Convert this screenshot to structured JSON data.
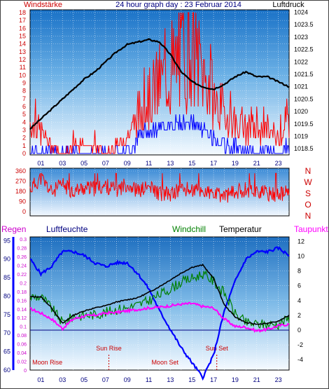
{
  "header": {
    "left_title": "Windstärke",
    "center_title": "24 hour graph day : 23 Februar 2014",
    "right_title": "Luftdruck"
  },
  "hour_labels": [
    "01",
    "03",
    "05",
    "07",
    "09",
    "11",
    "13",
    "15",
    "17",
    "19",
    "21",
    "23"
  ],
  "colors": {
    "wind": "#ff0000",
    "gust_low": "#0000ff",
    "pressure": "#000000",
    "humidity": "#0000ff",
    "temperature": "#000000",
    "windchill": "#008000",
    "dewpoint": "#ff00ff",
    "zero_line": "#000080",
    "top_left_axis_text": "#cc0000",
    "right_axis_text": "#000000"
  },
  "chart_data": [
    {
      "type": "line",
      "name": "wind_pressure",
      "left_axis": {
        "label": "Windstärke",
        "ticks": [
          0,
          1,
          2,
          3,
          4,
          5,
          6,
          7,
          8,
          9,
          10,
          11,
          12,
          13,
          14,
          15,
          16,
          17,
          18
        ]
      },
      "right_axis": {
        "label": "Luftdruck",
        "ticks": [
          1018.5,
          1019,
          1019.5,
          1020,
          1020.5,
          1021,
          1021.5,
          1022,
          1022.5,
          1023,
          1023.5,
          1024
        ]
      },
      "x_hours": [
        0,
        1,
        2,
        3,
        4,
        5,
        6,
        7,
        8,
        9,
        10,
        11,
        12,
        13,
        14,
        15,
        16,
        17,
        18,
        19,
        20,
        21,
        22,
        23,
        24
      ],
      "pressure": [
        1019.3,
        1019.7,
        1020.1,
        1020.5,
        1020.9,
        1021.3,
        1021.6,
        1022.0,
        1022.4,
        1022.7,
        1022.8,
        1022.9,
        1022.8,
        1022.3,
        1021.6,
        1021.2,
        1021.0,
        1020.9,
        1021.1,
        1021.4,
        1021.6,
        1021.4,
        1021.4,
        1021.2,
        1021.0
      ],
      "wind": [
        4,
        3,
        1,
        0,
        1,
        1,
        1,
        0,
        1,
        2,
        5,
        7,
        9,
        10,
        12,
        14,
        10,
        7,
        5,
        4,
        3,
        3,
        3,
        2,
        4
      ],
      "wind_low": [
        0,
        0,
        0,
        0,
        0,
        0,
        0,
        0,
        0,
        0,
        2,
        3,
        3,
        4,
        4,
        4,
        3,
        2,
        1,
        1,
        0,
        0,
        0,
        0,
        1
      ]
    },
    {
      "type": "line",
      "name": "wind_direction",
      "left_ticks": [
        0,
        90,
        180,
        270,
        360
      ],
      "right_labels": [
        "N",
        "W",
        "S",
        "O",
        "N"
      ],
      "x_hours": [
        0,
        1,
        2,
        3,
        4,
        5,
        6,
        7,
        8,
        9,
        10,
        11,
        12,
        13,
        14,
        15,
        16,
        17,
        18,
        19,
        20,
        21,
        22,
        23,
        24
      ],
      "direction": [
        200,
        300,
        170,
        240,
        180,
        210,
        200,
        230,
        190,
        250,
        180,
        220,
        160,
        150,
        200,
        190,
        180,
        150,
        140,
        170,
        200,
        180,
        160,
        150,
        170
      ]
    },
    {
      "type": "line",
      "name": "weather",
      "legend": [
        "Regen",
        "Luftfeuchte",
        "Windchill",
        "Temperatur",
        "Taupunkt"
      ],
      "humidity_ticks": [
        60,
        65,
        70,
        75,
        80,
        85,
        90,
        95
      ],
      "rain_ticks": [
        0,
        0.02,
        0.04,
        0.06,
        0.08,
        0.1,
        0.12,
        0.14,
        0.16,
        0.18,
        0.2,
        0.22,
        0.24,
        0.26,
        0.28,
        0.3
      ],
      "temp_ticks": [
        -4,
        -2,
        0,
        2,
        4,
        6,
        8,
        10,
        12
      ],
      "x_hours": [
        0,
        1,
        2,
        3,
        4,
        5,
        6,
        7,
        8,
        9,
        10,
        11,
        12,
        13,
        14,
        15,
        16,
        17,
        18,
        19,
        20,
        21,
        22,
        23,
        24
      ],
      "humidity": [
        90,
        86,
        88,
        92,
        92,
        91,
        89,
        88,
        89,
        89,
        86,
        82,
        76,
        71,
        66,
        62,
        58,
        64,
        76,
        84,
        90,
        92,
        92,
        93,
        91
      ],
      "temperature": [
        4.5,
        4.5,
        3.0,
        0.9,
        2.0,
        2.6,
        3.0,
        3.3,
        3.8,
        4.1,
        4.4,
        5.1,
        5.9,
        6.8,
        7.7,
        8.5,
        8.8,
        7.0,
        3.4,
        1.8,
        1.0,
        0.8,
        0.9,
        1.2,
        2.0
      ],
      "windchill": [
        4.5,
        4.5,
        3.0,
        1.0,
        1.8,
        2.0,
        2.1,
        2.4,
        2.8,
        3.0,
        3.4,
        4.0,
        4.8,
        5.6,
        6.5,
        7.0,
        7.6,
        6.6,
        5.0,
        2.2,
        1.0,
        0.8,
        0.8,
        0.8,
        1.6
      ],
      "dewpoint": [
        2.9,
        2.3,
        1.5,
        0.2,
        1.5,
        1.9,
        2.0,
        2.3,
        2.4,
        2.6,
        2.8,
        3.0,
        3.1,
        3.3,
        3.5,
        3.6,
        3.2,
        3.0,
        1.5,
        0.5,
        0.4,
        -0.1,
        0.1,
        0.6,
        0.8
      ],
      "annotations": [
        {
          "text": "Moon Rise",
          "hour": 1.6
        },
        {
          "text": "Sun Rise",
          "hour": 7.3
        },
        {
          "text": "Moon Set",
          "hour": 12.5
        },
        {
          "text": "Sun Set",
          "hour": 17.3
        }
      ]
    }
  ]
}
